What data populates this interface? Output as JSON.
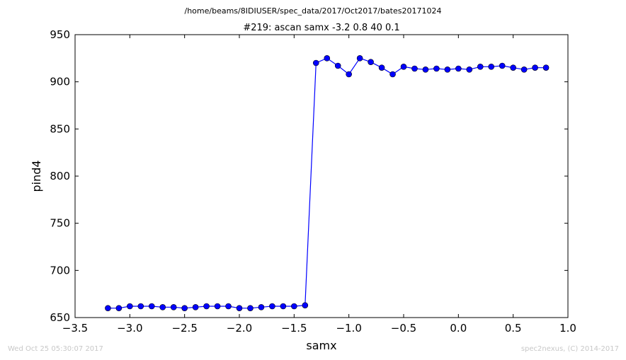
{
  "figure": {
    "supertitle": "/home/beams/8IDIUSER/spec_data/2017/Oct2017/bates20171024",
    "footer_left": "Wed Oct 25 05:30:07 2017",
    "footer_right": "spec2nexus, (C) 2014-2017"
  },
  "colors": {
    "line": "#0000ff",
    "marker": "#0000ff",
    "footer_text": "#c8c8c8",
    "axes": "#000000"
  },
  "chart_data": {
    "type": "line",
    "title": "#219: ascan  samx -3.2 0.8  40 0.1",
    "xlabel": "samx",
    "ylabel": "pind4",
    "xlim": [
      -3.5,
      1.0
    ],
    "ylim": [
      650,
      950
    ],
    "xticks": [
      -3.5,
      -3.0,
      -2.5,
      -2.0,
      -1.5,
      -1.0,
      -0.5,
      0.0,
      0.5,
      1.0
    ],
    "xtick_labels": [
      "−3.5",
      "−3.0",
      "−2.5",
      "−2.0",
      "−1.5",
      "−1.0",
      "−0.5",
      "0.0",
      "0.5",
      "1.0"
    ],
    "yticks": [
      650,
      700,
      750,
      800,
      850,
      900,
      950
    ],
    "ytick_labels": [
      "650",
      "700",
      "750",
      "800",
      "850",
      "900",
      "950"
    ],
    "grid": false,
    "series": [
      {
        "x": [
          -3.2,
          -3.1,
          -3.0,
          -2.9,
          -2.8,
          -2.7,
          -2.6,
          -2.5,
          -2.4,
          -2.3,
          -2.2,
          -2.1,
          -2.0,
          -1.9,
          -1.8,
          -1.7,
          -1.6,
          -1.5,
          -1.4,
          -1.3,
          -1.2,
          -1.1,
          -1.0,
          -0.9,
          -0.8,
          -0.7,
          -0.6,
          -0.5,
          -0.4,
          -0.3,
          -0.2,
          -0.1,
          0.0,
          0.1,
          0.2,
          0.3,
          0.4,
          0.5,
          0.6,
          0.7,
          0.8
        ],
        "y": [
          660,
          660,
          662,
          662,
          662,
          661,
          661,
          660,
          661,
          662,
          662,
          662,
          660,
          660,
          661,
          662,
          662,
          662,
          663,
          920,
          925,
          917,
          908,
          925,
          921,
          915,
          908,
          916,
          914,
          913,
          914,
          913,
          914,
          913,
          916,
          916,
          917,
          915,
          913,
          915,
          915
        ],
        "marker": "circle"
      }
    ]
  }
}
